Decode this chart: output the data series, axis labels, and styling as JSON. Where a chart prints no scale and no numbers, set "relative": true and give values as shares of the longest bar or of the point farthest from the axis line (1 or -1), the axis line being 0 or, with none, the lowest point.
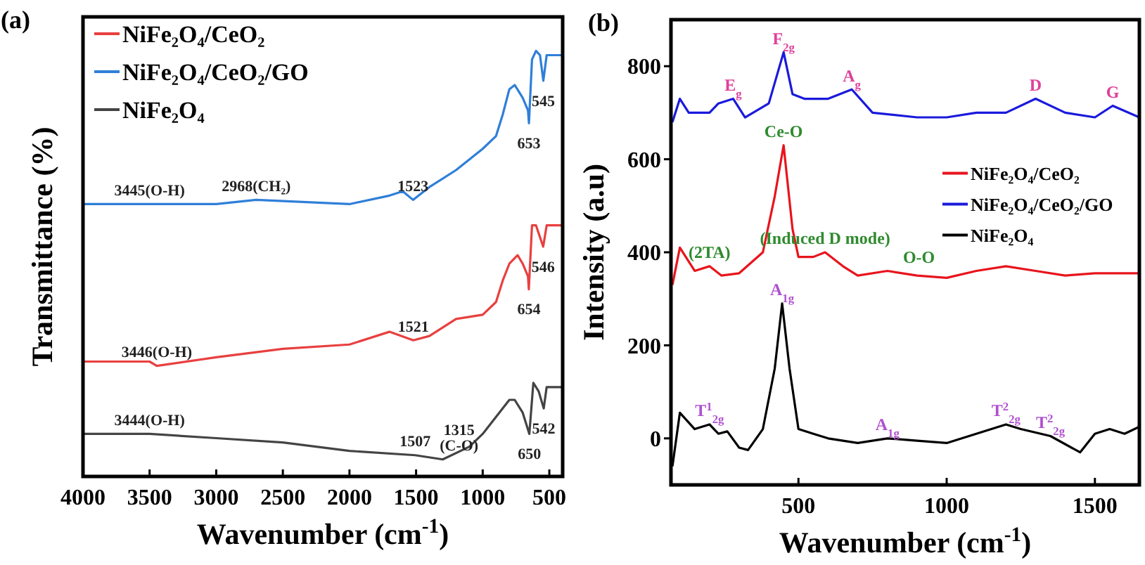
{
  "chart_data": [
    {
      "type": "line",
      "title": "(a)",
      "xlabel": "Wavenumber (cm$^{-1}$)",
      "ylabel": "Transmittance (%)",
      "relative": true,
      "tick_labels": "x",
      "xlim": [
        4000,
        400
      ],
      "xticks": [
        4000,
        3500,
        3000,
        2500,
        2000,
        1500,
        1000,
        500
      ],
      "legend": "top left",
      "series": [
        {
          "name": "NiFe₂O₄/CeO₂",
          "color": "#e8403f",
          "x": [
            4000,
            3500,
            3446,
            3000,
            2500,
            2000,
            1700,
            1521,
            1400,
            1200,
            1000,
            900,
            850,
            800,
            738,
            700,
            660,
            654,
            630,
            600,
            546,
            520,
            400
          ],
          "values": [
            0.27,
            0.27,
            0.26,
            0.28,
            0.3,
            0.31,
            0.34,
            0.32,
            0.33,
            0.37,
            0.38,
            0.41,
            0.46,
            0.5,
            0.52,
            0.5,
            0.47,
            0.44,
            0.59,
            0.59,
            0.54,
            0.59,
            0.59
          ]
        },
        {
          "name": "NiFe₂O₄/CeO₂/GO",
          "color": "#2f7fd8",
          "x": [
            4000,
            3500,
            3000,
            2700,
            2000,
            1700,
            1600,
            1523,
            1400,
            1200,
            1000,
            900,
            850,
            800,
            760,
            700,
            660,
            653,
            630,
            600,
            570,
            545,
            520,
            400
          ],
          "values": [
            0.64,
            0.64,
            0.64,
            0.65,
            0.64,
            0.66,
            0.67,
            0.65,
            0.68,
            0.72,
            0.77,
            0.8,
            0.85,
            0.91,
            0.92,
            0.89,
            0.86,
            0.83,
            0.98,
            1.0,
            0.99,
            0.93,
            0.99,
            0.99
          ]
        },
        {
          "name": "NiFe₂O₄",
          "color": "#444444",
          "x": [
            4000,
            3500,
            3000,
            2500,
            2000,
            1507,
            1300,
            1100,
            1000,
            900,
            800,
            760,
            700,
            650,
            620,
            580,
            542,
            520,
            400
          ],
          "values": [
            0.1,
            0.1,
            0.09,
            0.08,
            0.06,
            0.05,
            0.04,
            0.07,
            0.1,
            0.14,
            0.18,
            0.18,
            0.15,
            0.1,
            0.22,
            0.2,
            0.16,
            0.21,
            0.21
          ]
        }
      ],
      "annotations": [
        {
          "text": "3445(O-H)",
          "x": 3500,
          "y": 0.64
        },
        {
          "text": "2968(CH₂)",
          "x": 2700,
          "y": 0.65
        },
        {
          "text": "1523",
          "x": 1523,
          "y": 0.65
        },
        {
          "text": "653",
          "x": 653,
          "y": 0.83
        },
        {
          "text": "545",
          "x": 545,
          "y": 0.93
        },
        {
          "text": "3446(O-H)",
          "x": 3446,
          "y": 0.26
        },
        {
          "text": "1521",
          "x": 1521,
          "y": 0.32
        },
        {
          "text": "654",
          "x": 654,
          "y": 0.44
        },
        {
          "text": "546",
          "x": 546,
          "y": 0.54
        },
        {
          "text": "3444(O-H)",
          "x": 3500,
          "y": 0.1
        },
        {
          "text": "1507",
          "x": 1507,
          "y": 0.05
        },
        {
          "text": "1315 (C-O)",
          "x": 1300,
          "y": 0.04
        },
        {
          "text": "650",
          "x": 650,
          "y": 0.1
        },
        {
          "text": "542",
          "x": 542,
          "y": 0.16
        }
      ]
    },
    {
      "type": "line",
      "title": "(b)",
      "xlabel": "Wavenumber (cm$^{-1}$)",
      "ylabel": "Intensity (a.u)",
      "xlim": [
        70,
        1650
      ],
      "xticks": [
        500,
        1000,
        1500
      ],
      "ylim": [
        -100,
        900
      ],
      "yticks": [
        0,
        200,
        400,
        600,
        800
      ],
      "legend": "right",
      "series": [
        {
          "name": "NiFe₂O₄/CeO₂",
          "color": "#e8141c",
          "x": [
            75,
            100,
            150,
            200,
            240,
            300,
            380,
            420,
            450,
            480,
            500,
            550,
            590,
            650,
            700,
            800,
            900,
            1000,
            1100,
            1200,
            1300,
            1400,
            1500,
            1650
          ],
          "values": [
            330,
            410,
            360,
            370,
            350,
            355,
            400,
            520,
            630,
            450,
            390,
            390,
            400,
            370,
            350,
            360,
            350,
            345,
            360,
            370,
            360,
            350,
            355,
            355
          ]
        },
        {
          "name": "NiFe₂O₄/CeO₂/GO",
          "color": "#1a1adc",
          "x": [
            75,
            100,
            130,
            200,
            230,
            280,
            320,
            400,
            450,
            480,
            520,
            600,
            680,
            750,
            900,
            1000,
            1100,
            1200,
            1300,
            1400,
            1500,
            1560,
            1650
          ],
          "values": [
            680,
            730,
            700,
            700,
            720,
            730,
            690,
            720,
            830,
            740,
            730,
            730,
            750,
            700,
            690,
            690,
            700,
            700,
            730,
            700,
            690,
            715,
            690
          ]
        },
        {
          "name": "NiFe₂O₄",
          "color": "#000000",
          "x": [
            75,
            100,
            150,
            200,
            230,
            260,
            300,
            330,
            380,
            420,
            445,
            470,
            500,
            550,
            600,
            700,
            800,
            900,
            1000,
            1100,
            1200,
            1250,
            1350,
            1450,
            1500,
            1550,
            1600,
            1650
          ],
          "values": [
            -60,
            55,
            20,
            30,
            10,
            15,
            -20,
            -25,
            20,
            150,
            290,
            150,
            20,
            10,
            0,
            -10,
            0,
            -5,
            -10,
            10,
            30,
            20,
            5,
            -30,
            10,
            20,
            10,
            25
          ]
        }
      ],
      "annotations": [
        {
          "text": "E$_{g}$",
          "x": 280,
          "y": 730
        },
        {
          "text": "F$_{2g}$",
          "x": 450,
          "y": 830
        },
        {
          "text": "A$_{g}$",
          "x": 680,
          "y": 750
        },
        {
          "text": "D",
          "x": 1300,
          "y": 730
        },
        {
          "text": "G",
          "x": 1560,
          "y": 715
        },
        {
          "text": "Ce-O",
          "x": 450,
          "y": 630
        },
        {
          "text": "(2TA)",
          "x": 200,
          "y": 370
        },
        {
          "text": "(Induced D mode)",
          "x": 590,
          "y": 400
        },
        {
          "text": "O-O",
          "x": 800,
          "y": 360
        },
        {
          "text": "A$_{1g}$",
          "x": 445,
          "y": 290
        },
        {
          "text": "T$^{1}$$_{2g}$",
          "x": 200,
          "y": 30
        },
        {
          "text": "A$_{1g}$",
          "x": 800,
          "y": 0
        },
        {
          "text": "T$^{2}$$_{2g}$",
          "x": 1200,
          "y": 30
        },
        {
          "text": "T$^{2}$$_{2g}$",
          "x": 1350,
          "y": 5
        }
      ]
    }
  ]
}
